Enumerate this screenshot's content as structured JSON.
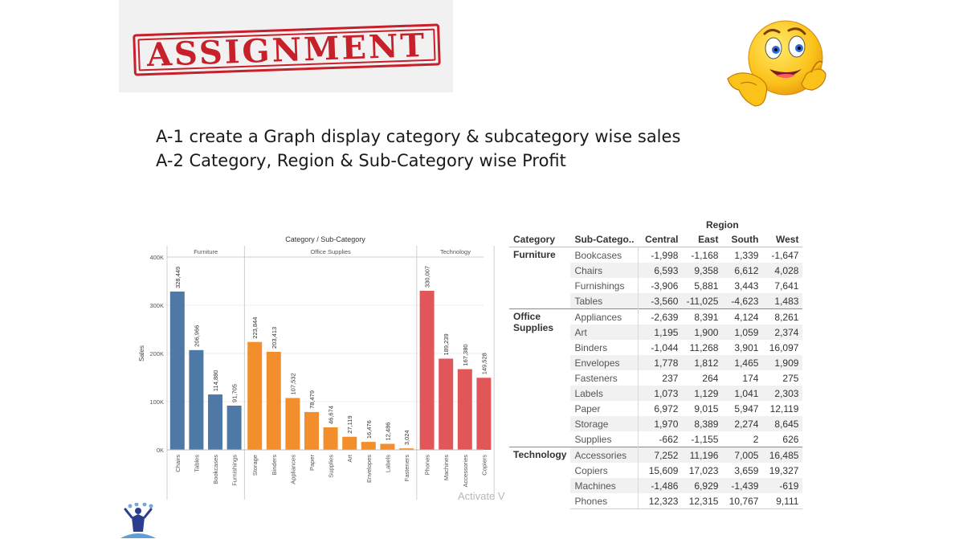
{
  "banner": {
    "stamp_text": "ASSIGNMENT"
  },
  "tasks": [
    "A-1 create a Graph display category & subcategory wise sales",
    "A-2  Category, Region & Sub-Category wise Profit"
  ],
  "chart_data": {
    "type": "bar",
    "title": "Category / Sub-Category",
    "ylabel": "Sales",
    "ylim": [
      0,
      400000
    ],
    "yticks": [
      0,
      100000,
      200000,
      300000,
      400000
    ],
    "ytick_labels": [
      "0K",
      "100K",
      "200K",
      "300K",
      "400K"
    ],
    "groups": [
      {
        "name": "Furniture",
        "color": "#4e79a7",
        "categories": [
          "Chairs",
          "Tables",
          "Bookcases",
          "Furnishings"
        ],
        "values": [
          328449,
          206966,
          114880,
          91705
        ],
        "labels": [
          "328,449",
          "206,966",
          "114,880",
          "91,705"
        ]
      },
      {
        "name": "Office Supplies",
        "color": "#f28e2b",
        "categories": [
          "Storage",
          "Binders",
          "Appliances",
          "Paper",
          "Supplies",
          "Art",
          "Envelopes",
          "Labels",
          "Fasteners"
        ],
        "values": [
          223844,
          203413,
          107532,
          78479,
          46674,
          27119,
          16476,
          12486,
          3024
        ],
        "labels": [
          "223,844",
          "203,413",
          "107,532",
          "78,479",
          "46,674",
          "27,119",
          "16,476",
          "12,486",
          "3,024"
        ]
      },
      {
        "name": "Technology",
        "color": "#e15759",
        "categories": [
          "Phones",
          "Machines",
          "Accessories",
          "Copiers"
        ],
        "values": [
          330007,
          189239,
          167380,
          149528
        ],
        "labels": [
          "330,007",
          "189,239",
          "167,380",
          "149,528"
        ]
      }
    ],
    "grid": true
  },
  "watermark": "Activate V",
  "table": {
    "region_title": "Region",
    "headers": [
      "Category",
      "Sub-Catego..",
      "Central",
      "East",
      "South",
      "West"
    ],
    "groups": [
      {
        "category": "Furniture",
        "rows": [
          {
            "sub": "Bookcases",
            "values": [
              "-1,998",
              "-1,168",
              "1,339",
              "-1,647"
            ]
          },
          {
            "sub": "Chairs",
            "values": [
              "6,593",
              "9,358",
              "6,612",
              "4,028"
            ]
          },
          {
            "sub": "Furnishings",
            "values": [
              "-3,906",
              "5,881",
              "3,443",
              "7,641"
            ]
          },
          {
            "sub": "Tables",
            "values": [
              "-3,560",
              "-11,025",
              "-4,623",
              "1,483"
            ]
          }
        ]
      },
      {
        "category": "Office Supplies",
        "rows": [
          {
            "sub": "Appliances",
            "values": [
              "-2,639",
              "8,391",
              "4,124",
              "8,261"
            ]
          },
          {
            "sub": "Art",
            "values": [
              "1,195",
              "1,900",
              "1,059",
              "2,374"
            ]
          },
          {
            "sub": "Binders",
            "values": [
              "-1,044",
              "11,268",
              "3,901",
              "16,097"
            ]
          },
          {
            "sub": "Envelopes",
            "values": [
              "1,778",
              "1,812",
              "1,465",
              "1,909"
            ]
          },
          {
            "sub": "Fasteners",
            "values": [
              "237",
              "264",
              "174",
              "275"
            ]
          },
          {
            "sub": "Labels",
            "values": [
              "1,073",
              "1,129",
              "1,041",
              "2,303"
            ]
          },
          {
            "sub": "Paper",
            "values": [
              "6,972",
              "9,015",
              "5,947",
              "12,119"
            ]
          },
          {
            "sub": "Storage",
            "values": [
              "1,970",
              "8,389",
              "2,274",
              "8,645"
            ]
          },
          {
            "sub": "Supplies",
            "values": [
              "-662",
              "-1,155",
              "2",
              "626"
            ]
          }
        ]
      },
      {
        "category": "Technology",
        "rows": [
          {
            "sub": "Accessories",
            "values": [
              "7,252",
              "11,196",
              "7,005",
              "16,485"
            ]
          },
          {
            "sub": "Copiers",
            "values": [
              "15,609",
              "17,023",
              "3,659",
              "19,327"
            ]
          },
          {
            "sub": "Machines",
            "values": [
              "-1,486",
              "6,929",
              "-1,439",
              "-619"
            ]
          },
          {
            "sub": "Phones",
            "values": [
              "12,323",
              "12,315",
              "10,767",
              "9,111"
            ]
          }
        ]
      }
    ]
  }
}
